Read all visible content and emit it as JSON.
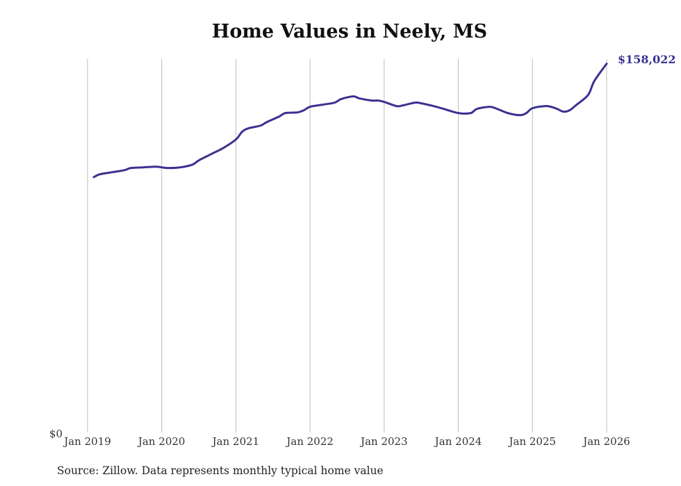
{
  "chart_data": {
    "type": "line",
    "title": "Home Values in Neely, MS",
    "xlabel": "",
    "ylabel": "",
    "ylim": [
      0,
      160000
    ],
    "y_tick_labels": [
      "$0"
    ],
    "x_tick_labels": [
      "Jan 2019",
      "Jan 2020",
      "Jan 2021",
      "Jan 2022",
      "Jan 2023",
      "Jan 2024",
      "Jan 2025",
      "Jan 2026"
    ],
    "grid": "vertical",
    "end_label": "$158,022",
    "color": "#3b3191",
    "series": [
      {
        "name": "Typical home value",
        "x": [
          "2019-02",
          "2019-03",
          "2019-05",
          "2019-07",
          "2019-08",
          "2019-10",
          "2019-12",
          "2020-01",
          "2020-02",
          "2020-04",
          "2020-06",
          "2020-07",
          "2020-09",
          "2020-11",
          "2021-01",
          "2021-02",
          "2021-03",
          "2021-05",
          "2021-06",
          "2021-08",
          "2021-09",
          "2021-11",
          "2021-12",
          "2022-01",
          "2022-03",
          "2022-05",
          "2022-06",
          "2022-08",
          "2022-09",
          "2022-11",
          "2022-12",
          "2023-01",
          "2023-03",
          "2023-04",
          "2023-06",
          "2023-07",
          "2023-09",
          "2023-11",
          "2024-01",
          "2024-03",
          "2024-04",
          "2024-06",
          "2024-07",
          "2024-09",
          "2024-11",
          "2024-12",
          "2025-01",
          "2025-03",
          "2025-04",
          "2025-05",
          "2025-06",
          "2025-07",
          "2025-08",
          "2025-10",
          "2025-11",
          "2026-01"
        ],
        "values": [
          109440,
          110630,
          111530,
          112420,
          113320,
          113610,
          113910,
          113610,
          113320,
          113610,
          114810,
          116600,
          119280,
          121960,
          125540,
          128820,
          130310,
          131510,
          133000,
          135380,
          136870,
          137170,
          138070,
          139560,
          140450,
          141350,
          142840,
          144030,
          143140,
          142240,
          142240,
          141650,
          139860,
          140150,
          141350,
          141050,
          139860,
          138360,
          136870,
          136870,
          138660,
          139560,
          138960,
          136870,
          135980,
          136870,
          138960,
          139860,
          139560,
          138660,
          137470,
          138070,
          140150,
          144630,
          150600,
          158022
        ]
      }
    ]
  },
  "source": "Source: Zillow. Data represents monthly typical home value"
}
